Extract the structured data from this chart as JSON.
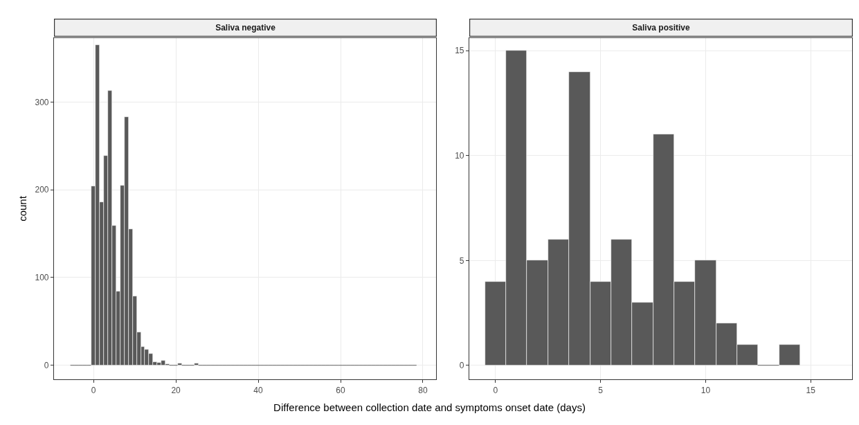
{
  "chart_data": [
    {
      "type": "histogram",
      "title": "Saliva negative",
      "xlabel": "Difference between collection date and symptoms onset date (days)",
      "ylabel": "count",
      "color": "#595959",
      "grid": true,
      "bins": [
        -5.5,
        -4.5,
        -3.5,
        -2.5,
        -1.5,
        -0.5,
        0.5,
        1.5,
        2.5,
        3.5,
        4.5,
        5.5,
        6.5,
        7.5,
        8.5,
        9.5,
        10.5,
        11.5,
        12.5,
        13.5,
        14.5,
        15.5,
        16.5,
        17.5,
        18.5,
        19.5,
        20.5,
        21.5,
        22.5,
        23.5,
        24.5,
        25.5,
        26.5,
        27.5,
        28.5,
        29.5,
        30.5,
        31.5,
        32.5,
        33.5,
        34.5,
        35.5,
        36.5,
        37.5,
        38.5,
        39.5,
        40.5,
        41.5,
        42.5,
        43.5,
        44.5,
        45.5,
        46.5,
        47.5,
        48.5,
        49.5,
        50.5,
        51.5,
        52.5,
        53.5,
        54.5,
        55.5,
        56.5,
        57.5,
        58.5,
        59.5,
        60.5,
        61.5,
        62.5,
        63.5,
        64.5,
        65.5,
        66.5,
        67.5,
        68.5,
        69.5,
        70.5,
        71.5,
        72.5,
        73.5,
        74.5,
        75.5,
        76.5,
        77.5,
        78.5
      ],
      "values": [
        0,
        0,
        0,
        0,
        0,
        204,
        365,
        186,
        239,
        313,
        159,
        84,
        205,
        283,
        155,
        79,
        38,
        21,
        18,
        13,
        4,
        3,
        5,
        1,
        0,
        0,
        2,
        0,
        0,
        0,
        2,
        0,
        0,
        0,
        0,
        0,
        0,
        0,
        0,
        0,
        0,
        0,
        0,
        0,
        0,
        0,
        0,
        0,
        0,
        0,
        0,
        0,
        0,
        0,
        0,
        0,
        0,
        0,
        0,
        0,
        0,
        0,
        0,
        0,
        0,
        0,
        0,
        0,
        0,
        0,
        0,
        0,
        0,
        0,
        0,
        0,
        0,
        0,
        0,
        0,
        0,
        0,
        0,
        0
      ],
      "xlim": [
        -9.6,
        83.2
      ],
      "xticks": [
        0,
        20,
        40,
        60,
        80
      ],
      "ylim": [
        -16,
        373
      ],
      "yticks": [
        0,
        100,
        200,
        300
      ]
    },
    {
      "type": "histogram",
      "title": "Saliva positive",
      "color": "#595959",
      "grid": true,
      "bins": [
        -0.5,
        0.5,
        1.5,
        2.5,
        3.5,
        4.5,
        5.5,
        6.5,
        7.5,
        8.5,
        9.5,
        10.5,
        11.5,
        12.5,
        13.5,
        14.5
      ],
      "values": [
        4,
        15,
        5,
        6,
        14,
        4,
        6,
        3,
        11,
        4,
        5,
        2,
        1,
        0,
        1
      ],
      "xlim": [
        -1.25,
        16.97
      ],
      "xticks": [
        0,
        5,
        10,
        15
      ],
      "ylim": [
        -0.66,
        15.6
      ],
      "yticks": [
        0,
        5,
        10,
        15
      ]
    }
  ]
}
